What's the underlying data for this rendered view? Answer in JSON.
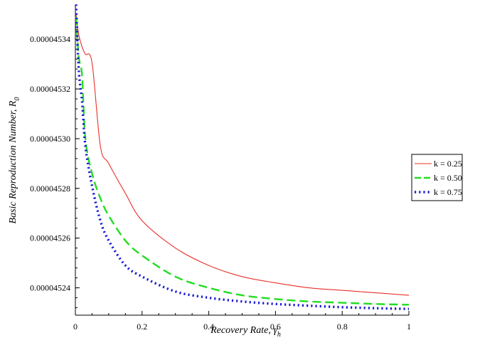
{
  "chart_data": {
    "type": "line",
    "xlabel": "Recovery Rate, ",
    "xlabel_symbol": "γ",
    "xlabel_sub": "h",
    "ylabel": "Basic Reproduction Number, ",
    "ylabel_symbol": "R",
    "ylabel_sub": "0",
    "xlim": [
      0,
      1
    ],
    "ylim": [
      4.5229e-05,
      4.53535e-05
    ],
    "x_ticks": [
      {
        "value": 0,
        "label": "0"
      },
      {
        "value": 0.2,
        "label": "0.2"
      },
      {
        "value": 0.4,
        "label": "0.4"
      },
      {
        "value": 0.6,
        "label": "0.6"
      },
      {
        "value": 0.8,
        "label": "0.8"
      },
      {
        "value": 1,
        "label": "1"
      }
    ],
    "y_ticks": [
      {
        "value": 4.524e-05,
        "label": "0.00004524"
      },
      {
        "value": 4.526e-05,
        "label": "0.00004526"
      },
      {
        "value": 4.528e-05,
        "label": "0.00004528"
      },
      {
        "value": 4.53e-05,
        "label": "0.00004530"
      },
      {
        "value": 4.532e-05,
        "label": "0.00004532"
      },
      {
        "value": 4.534e-05,
        "label": "0.00004534"
      }
    ],
    "legend_position": "right",
    "series": [
      {
        "name": "k = 0.25",
        "color": "#e8302a",
        "dash": "solid",
        "x": [
          0.002,
          0.01,
          0.02,
          0.03,
          0.05,
          0.075,
          0.1,
          0.15,
          0.2,
          0.3,
          0.4,
          0.5,
          0.6,
          0.7,
          0.8,
          0.9,
          1.0
        ],
        "y": [
          4.535e-05,
          4.5342e-05,
          4.5337e-05,
          4.5334e-05,
          4.53305e-05,
          4.5297e-05,
          4.529e-05,
          4.5278e-05,
          4.5267e-05,
          4.5256e-05,
          4.5249e-05,
          4.52445e-05,
          4.5242e-05,
          4.524e-05,
          4.5239e-05,
          4.5238e-05,
          4.5237e-05
        ]
      },
      {
        "name": "k = 0.50",
        "color": "#22dd22",
        "dash": "long-dash",
        "x": [
          0.002,
          0.01,
          0.02,
          0.03,
          0.05,
          0.075,
          0.1,
          0.15,
          0.2,
          0.3,
          0.4,
          0.5,
          0.6,
          0.7,
          0.8,
          0.9,
          1.0
        ],
        "y": [
          4.5349e-05,
          4.5333e-05,
          4.53255e-05,
          4.53e-05,
          4.5286e-05,
          4.5276e-05,
          4.5269e-05,
          4.5259e-05,
          4.5253e-05,
          4.52445e-05,
          4.524e-05,
          4.5237e-05,
          4.52355e-05,
          4.52345e-05,
          4.5234e-05,
          4.52335e-05,
          4.52332e-05
        ]
      },
      {
        "name": "k = 0.75",
        "color": "#1a1ad6",
        "dash": "dotted",
        "x": [
          0.002,
          0.01,
          0.02,
          0.03,
          0.05,
          0.075,
          0.1,
          0.15,
          0.2,
          0.3,
          0.4,
          0.5,
          0.6,
          0.7,
          0.8,
          0.9,
          1.0
        ],
        "y": [
          4.5354e-05,
          4.5328e-05,
          4.5315e-05,
          4.5297e-05,
          4.5281e-05,
          4.5267e-05,
          4.5259e-05,
          4.5249e-05,
          4.52445e-05,
          4.52385e-05,
          4.5236e-05,
          4.52345e-05,
          4.52335e-05,
          4.52328e-05,
          4.52322e-05,
          4.52318e-05,
          4.52315e-05
        ]
      }
    ]
  }
}
